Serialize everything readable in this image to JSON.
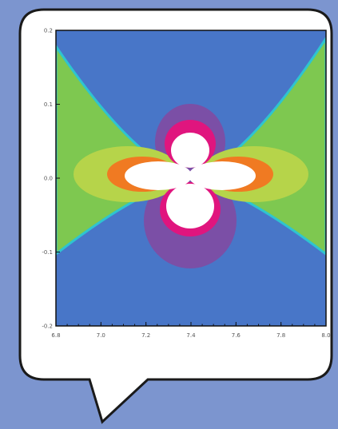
{
  "colors": {
    "page_background": "#7c95cf",
    "bubble_fill": "#ffffff",
    "bubble_stroke": "#1a1a1a",
    "plot_frame": "#111111"
  },
  "chart_data": {
    "type": "contour",
    "title": "",
    "xlabel": "",
    "ylabel": "",
    "xlim": [
      6.8,
      8.0
    ],
    "ylim": [
      -0.2,
      0.2
    ],
    "x_ticks": [
      {
        "value": 6.8,
        "label": "6.8"
      },
      {
        "value": 7.0,
        "label": "7.0"
      },
      {
        "value": 7.2,
        "label": "7.2"
      },
      {
        "value": 7.4,
        "label": "7.4"
      },
      {
        "value": 7.6,
        "label": "7.6"
      },
      {
        "value": 7.8,
        "label": "7.8"
      },
      {
        "value": 8.0,
        "label": "8.0"
      }
    ],
    "y_ticks": [
      {
        "value": 0.2,
        "label": "0.2"
      },
      {
        "value": 0.1,
        "label": "0.1"
      },
      {
        "value": 0.0,
        "label": "0.0"
      },
      {
        "value": -0.1,
        "label": "-0.1"
      },
      {
        "value": -0.2,
        "label": "-0.2"
      }
    ],
    "pattern": "four-lobed (quadrupole) contour pattern centred at (7.4, 0.0): horizontal lobes along y = 0, vertical lobes along x = 7.4, separated by diagonal boundaries",
    "levels_outer_to_inner_horizontal": [
      "blue",
      "green",
      "yellow-green",
      "orange",
      "white"
    ],
    "levels_outer_to_inner_vertical": [
      "blue",
      "purple",
      "magenta",
      "white"
    ],
    "level_colors": {
      "blue": "#4876c8",
      "cyan_edge": "#2ec4d0",
      "green": "#7ec850",
      "yellow_green": "#b6d44a",
      "orange": "#f07a22",
      "purple": "#7b4fa6",
      "magenta": "#e0157e",
      "white": "#ffffff"
    },
    "grid": false,
    "legend": "none"
  }
}
